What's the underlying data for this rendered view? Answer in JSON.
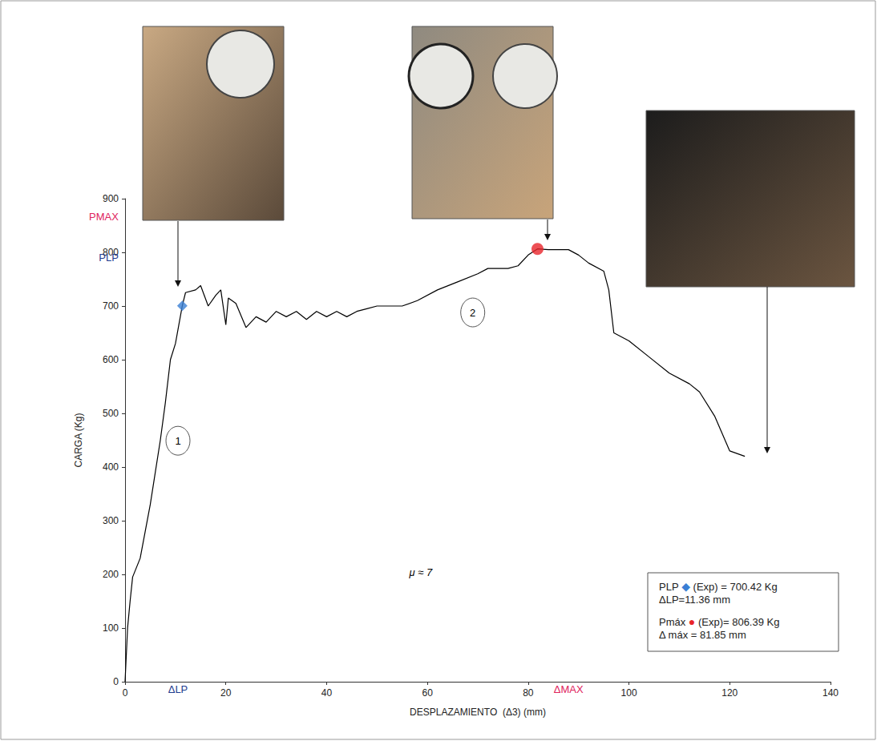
{
  "chart_data": {
    "type": "line",
    "x_label": "DESPLAZAMIENTO  (Δ3) (mm)",
    "y_label": "CARGA (Kg)",
    "color": "#000000",
    "grid": false,
    "xlim": [
      0,
      140
    ],
    "xticks": [
      0,
      20,
      40,
      60,
      80,
      100,
      120,
      140
    ],
    "ylim": [
      0,
      900
    ],
    "yticks": [
      0,
      100,
      200,
      300,
      400,
      500,
      600,
      700,
      800,
      900
    ],
    "x": [
      0,
      0.5,
      1,
      1.5,
      3,
      4,
      5,
      6,
      7,
      8,
      9,
      10,
      11.36,
      12,
      14,
      15,
      16.5,
      18,
      19,
      20,
      20.5,
      22,
      24,
      26,
      28,
      30,
      32,
      34,
      36,
      38,
      40,
      42,
      44,
      46,
      48,
      50,
      55,
      58,
      62,
      66,
      70,
      72,
      76,
      78,
      80,
      81.85,
      84,
      88,
      90,
      92,
      95,
      96,
      97,
      100,
      104,
      108,
      112,
      114,
      117,
      120,
      123
    ],
    "values": [
      0,
      100,
      150,
      195,
      230,
      280,
      330,
      390,
      450,
      520,
      600,
      630,
      700.42,
      725,
      730,
      738,
      700,
      720,
      730,
      665,
      715,
      705,
      660,
      680,
      670,
      690,
      680,
      690,
      675,
      690,
      680,
      690,
      680,
      690,
      695,
      700,
      700,
      710,
      730,
      745,
      760,
      770,
      770,
      775,
      795,
      806.39,
      805,
      805,
      795,
      780,
      765,
      730,
      650,
      635,
      605,
      575,
      555,
      540,
      495,
      430,
      420
    ],
    "points": [
      {
        "x": 11.36,
        "y": 700.42,
        "color": "#3a7fd5",
        "marker": "diamond"
      },
      {
        "x": 81.85,
        "y": 806.39,
        "color": "#e8242a",
        "marker": "circle"
      }
    ],
    "annotations": [
      {
        "text": "PMAX",
        "x": -1.3,
        "y": 867,
        "color": "#e0245e"
      },
      {
        "text": "PLP",
        "x": -1.3,
        "y": 790,
        "color": "#1f3d8f"
      },
      {
        "text": "ΔLP",
        "x": 10.5,
        "y": -14,
        "color": "#1f3d8f"
      },
      {
        "text": "ΔMAX",
        "x": 88,
        "y": -14,
        "color": "#e0245e"
      },
      {
        "text": "1",
        "x": 10.5,
        "y": 449,
        "color": "#000000",
        "marker": "circle"
      },
      {
        "text": "2",
        "x": 69,
        "y": 688,
        "color": "#000000",
        "marker": "circle"
      },
      {
        "text": "μ ≈ 7",
        "x": 58.7,
        "y": 203,
        "color": "#000000"
      }
    ],
    "info_box": [
      {
        "lines": [
          "PLP ◆ (Exp) = 700.42 Kg",
          "ΔLP=11.36 mm"
        ],
        "color": "#3a7fd5"
      },
      {
        "lines": [
          "Pmáx ● (Exp)= 806.39 Kg",
          "Δ máx = 81.85 mm"
        ],
        "color": "#e8242a"
      }
    ]
  }
}
